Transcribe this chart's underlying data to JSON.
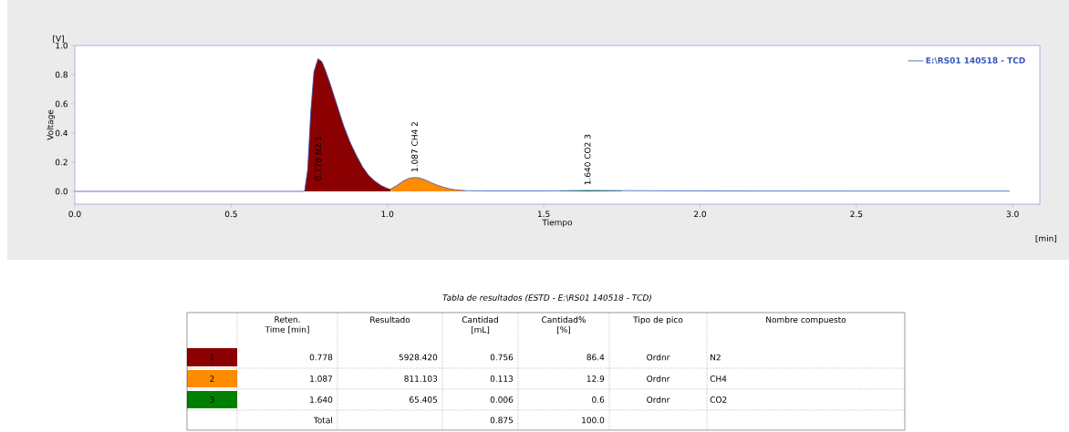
{
  "chart_data": {
    "type": "line",
    "xlabel": "Tiempo",
    "ylabel": "Voltage",
    "legend": "top right",
    "xlim": [
      0,
      3.087
    ],
    "ylim": [
      -0.0875,
      1.0
    ],
    "xticks": [
      {
        "value": 0,
        "label": "0.0"
      },
      {
        "value": 0.5,
        "label": "0.5"
      },
      {
        "value": 1,
        "label": "1.0"
      },
      {
        "value": 1.5,
        "label": "1.5"
      },
      {
        "value": 2,
        "label": "2.0"
      },
      {
        "value": 2.5,
        "label": "2.5"
      },
      {
        "value": 3,
        "label": "3.0"
      }
    ],
    "yticks": [
      {
        "value": 0,
        "label": "0.0"
      },
      {
        "value": 0.2,
        "label": "0.2"
      },
      {
        "value": 0.4,
        "label": "0.4"
      },
      {
        "value": 0.6,
        "label": "0.6"
      },
      {
        "value": 0.8,
        "label": "0.8"
      },
      {
        "value": 1,
        "label": "1.0"
      }
    ],
    "series": [
      {
        "type": "area",
        "color": "#8b0000",
        "x": [
          0.735,
          0.745,
          0.755,
          0.765,
          0.778,
          0.79,
          0.8,
          0.815,
          0.83,
          0.845,
          0.86,
          0.88,
          0.9,
          0.92,
          0.94,
          0.96,
          0.98,
          1.0,
          1.01
        ],
        "values": [
          0,
          0.15,
          0.55,
          0.82,
          0.91,
          0.89,
          0.84,
          0.75,
          0.65,
          0.55,
          0.45,
          0.34,
          0.25,
          0.17,
          0.11,
          0.07,
          0.04,
          0.02,
          0.015
        ]
      },
      {
        "type": "area",
        "color": "#ff8c00",
        "x": [
          1.01,
          1.03,
          1.05,
          1.07,
          1.087,
          1.1,
          1.12,
          1.14,
          1.16,
          1.18,
          1.2,
          1.22,
          1.25
        ],
        "values": [
          0.015,
          0.04,
          0.07,
          0.09,
          0.095,
          0.093,
          0.08,
          0.06,
          0.042,
          0.028,
          0.017,
          0.01,
          0.005
        ]
      },
      {
        "type": "area",
        "color": "#008000",
        "x": [
          1.55,
          1.6,
          1.64,
          1.7,
          1.75
        ],
        "values": [
          0.003,
          0.005,
          0.006,
          0.005,
          0.003
        ]
      },
      {
        "type": "line",
        "name": "E:\\RS01 140518 - TCD",
        "color": "#3355bb",
        "x": [
          0,
          0.5,
          0.72,
          0.735,
          0.745,
          0.755,
          0.765,
          0.778,
          0.79,
          0.8,
          0.815,
          0.83,
          0.845,
          0.86,
          0.88,
          0.9,
          0.92,
          0.94,
          0.96,
          0.98,
          1.0,
          1.01,
          1.03,
          1.05,
          1.07,
          1.087,
          1.1,
          1.12,
          1.14,
          1.16,
          1.18,
          1.2,
          1.22,
          1.25,
          1.3,
          1.5,
          1.64,
          2.0,
          2.5,
          2.99
        ],
        "values": [
          0,
          0,
          0,
          0,
          0.15,
          0.55,
          0.82,
          0.91,
          0.89,
          0.84,
          0.75,
          0.65,
          0.55,
          0.45,
          0.34,
          0.25,
          0.17,
          0.11,
          0.07,
          0.04,
          0.02,
          0.015,
          0.04,
          0.07,
          0.09,
          0.095,
          0.093,
          0.08,
          0.06,
          0.042,
          0.028,
          0.017,
          0.01,
          0.005,
          0.003,
          0.003,
          0.006,
          0.003,
          0.002,
          0.002
        ]
      }
    ],
    "annotations": [
      "0.778 N2  1",
      "1.087 CH4  2",
      "1.640 CO2  3",
      "[V]",
      "[min]",
      "Tabla de resultados (ESTD - E:\\RS01 140518 - TCD)",
      null,
      "Reten. Time [min]",
      "Resultado",
      "Cantidad [mL]",
      "Cantidad% [%]",
      "Tipo de pico",
      "Nombre compuesto",
      "1",
      "0.778",
      "5928.420",
      "0.756",
      "86.4",
      "Ordnr",
      "N2",
      "2",
      "1.087",
      "811.103",
      "0.113",
      "12.9",
      "Ordnr",
      "CH4",
      "3",
      "1.640",
      "65.405",
      "0.006",
      "0.6",
      "Ordnr",
      "CO2",
      null,
      "Total",
      null,
      "0.875",
      "100.0",
      null,
      null
    ]
  }
}
